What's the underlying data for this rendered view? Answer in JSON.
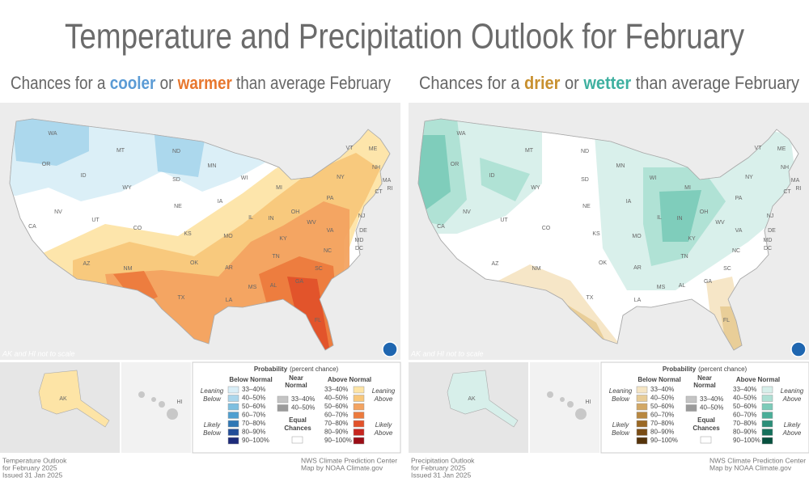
{
  "title": "Temperature and Precipitation Outlook for February",
  "states": [
    "WA",
    "OR",
    "CA",
    "ID",
    "NV",
    "MT",
    "WY",
    "UT",
    "AZ",
    "CO",
    "NM",
    "ND",
    "SD",
    "NE",
    "KS",
    "OK",
    "TX",
    "MN",
    "IA",
    "MO",
    "AR",
    "LA",
    "WI",
    "IL",
    "MS",
    "MI",
    "IN",
    "KY",
    "TN",
    "AL",
    "OH",
    "GA",
    "FL",
    "SC",
    "NC",
    "VA",
    "WV",
    "PA",
    "NY",
    "VT",
    "NH",
    "ME",
    "MA",
    "CT",
    "RI",
    "NJ",
    "DE",
    "MD",
    "DC"
  ],
  "inset_labels": [
    "AK",
    "HI"
  ],
  "scale_note": "AK and HI not to scale",
  "legend": {
    "title": "Probability",
    "title_note": "(percent chance)",
    "below_header": "Below Normal",
    "near_header": [
      "Near",
      "Normal"
    ],
    "above_header": "Above Normal",
    "leaning_below": [
      "Leaning",
      "Below"
    ],
    "likely_below": [
      "Likely",
      "Below"
    ],
    "leaning_above": [
      "Leaning",
      "Above"
    ],
    "likely_above": [
      "Likely",
      "Above"
    ],
    "ranges": [
      "33–40%",
      "40–50%",
      "50–60%",
      "60–70%",
      "70–80%",
      "80–90%",
      "90–100%"
    ],
    "near_ranges": [
      "33–40%",
      "40–50%"
    ],
    "equal": [
      "Equal",
      "Chances"
    ]
  },
  "panels": [
    {
      "subtitle": {
        "before": "Chances for a ",
        "word1": "cooler",
        "mid": " or ",
        "word2": "warmer",
        "after": " than average February"
      },
      "word1_color": "#5b9bd5",
      "word2_color": "#e8772e",
      "below_colors": [
        "#d9eef7",
        "#aad6ec",
        "#7ebfe0",
        "#4f9fd0",
        "#2f77b5",
        "#234d98",
        "#1d2b7a"
      ],
      "above_colors": [
        "#fde4a6",
        "#f8c77a",
        "#f3a361",
        "#ec7a3d",
        "#e2522a",
        "#c7261f",
        "#9b0d16"
      ],
      "footer_left": [
        "Temperature Outlook",
        "for February 2025",
        "Issued 31 Jan 2025"
      ],
      "footer_right": [
        "NWS Climate Prediction Center",
        "Map by NOAA Climate.gov"
      ]
    },
    {
      "subtitle": {
        "before": "Chances for a ",
        "word1": "drier",
        "mid": " or ",
        "word2": "wetter",
        "after": " than average February"
      },
      "word1_color": "#c8902f",
      "word2_color": "#3fb0a0",
      "below_colors": [
        "#f5e5c4",
        "#e8cc96",
        "#d2a866",
        "#b88740",
        "#9a6824",
        "#7a4c14",
        "#55330a"
      ],
      "above_colors": [
        "#d7efea",
        "#aee0d4",
        "#7ccbb9",
        "#4aae98",
        "#2b8e78",
        "#14705b",
        "#06503e"
      ],
      "footer_left": [
        "Precipitation Outlook",
        "for February 2025",
        "Issued 31 Jan 2025"
      ],
      "footer_right": [
        "NWS Climate Prediction Center",
        "Map by NOAA Climate.gov"
      ]
    }
  ]
}
